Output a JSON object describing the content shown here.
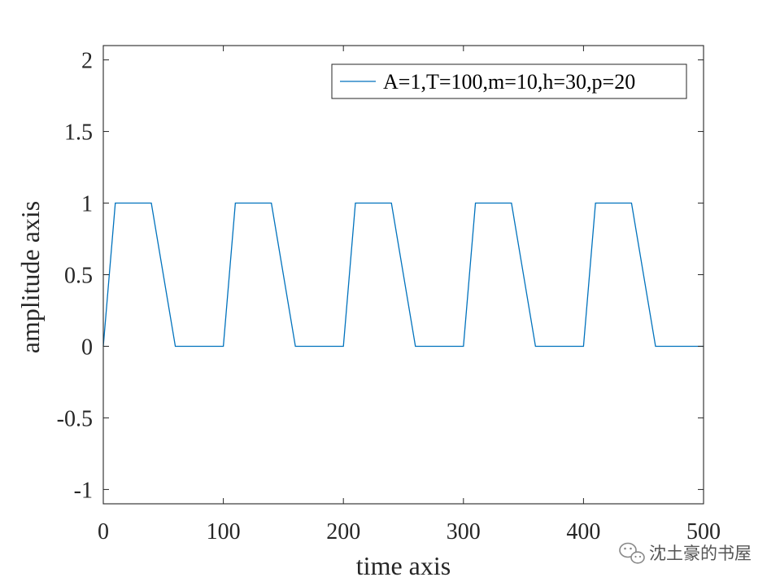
{
  "chart_data": {
    "type": "line",
    "title": "",
    "xlabel": "time axis",
    "ylabel": "amplitude axis",
    "xlim": [
      0,
      500
    ],
    "ylim": [
      -1.1,
      2.1
    ],
    "xticks": [
      0,
      100,
      200,
      300,
      400,
      500
    ],
    "xtick_labels": [
      "0",
      "100",
      "200",
      "300",
      "400",
      "500"
    ],
    "yticks": [
      -1,
      -0.5,
      0,
      0.5,
      1,
      1.5,
      2
    ],
    "ytick_labels": [
      "-1",
      "-0.5",
      "0",
      "0.5",
      "1",
      "1.5",
      "2"
    ],
    "grid": false,
    "legend_position": "top-right",
    "series": [
      {
        "name": "A=1,T=100,m=10,h=30,p=20",
        "color": "#0072BD",
        "x": [
          0,
          10,
          40,
          60,
          100,
          110,
          140,
          160,
          200,
          210,
          240,
          260,
          300,
          310,
          340,
          360,
          400,
          410,
          440,
          460,
          500
        ],
        "y": [
          0,
          1,
          1,
          0,
          0,
          1,
          1,
          0,
          0,
          1,
          1,
          0,
          0,
          1,
          1,
          0,
          0,
          1,
          1,
          0,
          0
        ]
      }
    ]
  },
  "watermark": {
    "text": "沈土豪的书屋",
    "icon": "wechat-icon"
  }
}
